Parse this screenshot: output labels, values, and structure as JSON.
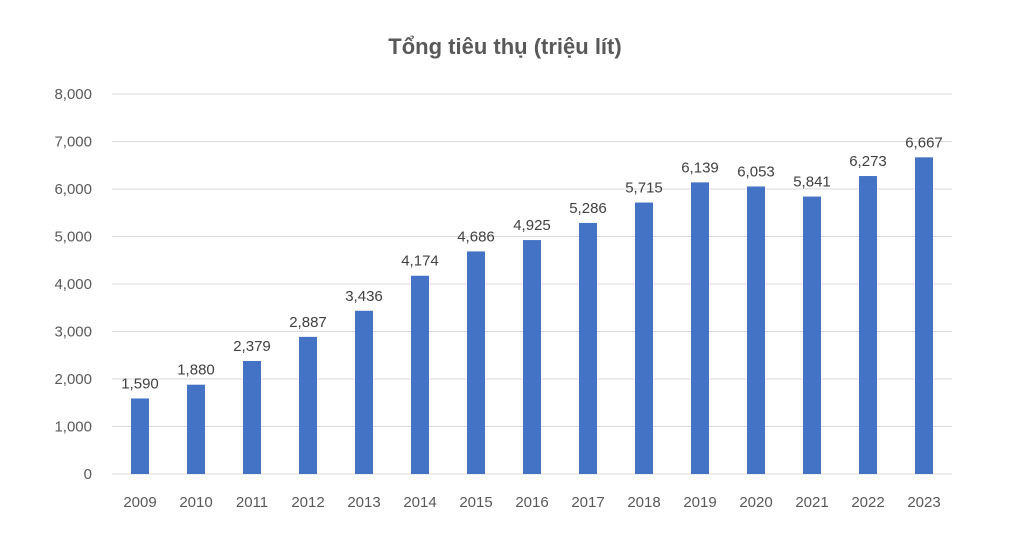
{
  "chart_data": {
    "type": "bar",
    "title": "Tổng tiêu thụ (triệu lít)",
    "categories": [
      "2009",
      "2010",
      "2011",
      "2012",
      "2013",
      "2014",
      "2015",
      "2016",
      "2017",
      "2018",
      "2019",
      "2020",
      "2021",
      "2022",
      "2023"
    ],
    "values": [
      1590,
      1880,
      2379,
      2887,
      3436,
      4174,
      4686,
      4925,
      5286,
      5715,
      6139,
      6053,
      5841,
      6273,
      6667
    ],
    "value_labels": [
      "1,590",
      "1,880",
      "2,379",
      "2,887",
      "3,436",
      "4,174",
      "4,686",
      "4,925",
      "5,286",
      "5,715",
      "6,139",
      "6,053",
      "5,841",
      "6,273",
      "6,667"
    ],
    "y_ticks": [
      0,
      1000,
      2000,
      3000,
      4000,
      5000,
      6000,
      7000,
      8000
    ],
    "y_tick_labels": [
      "0",
      "1,000",
      "2,000",
      "3,000",
      "4,000",
      "5,000",
      "6,000",
      "7,000",
      "8,000"
    ],
    "ylim": [
      0,
      8000
    ],
    "xlabel": "",
    "ylabel": "",
    "grid": true,
    "bar_color": "#4472c4"
  }
}
